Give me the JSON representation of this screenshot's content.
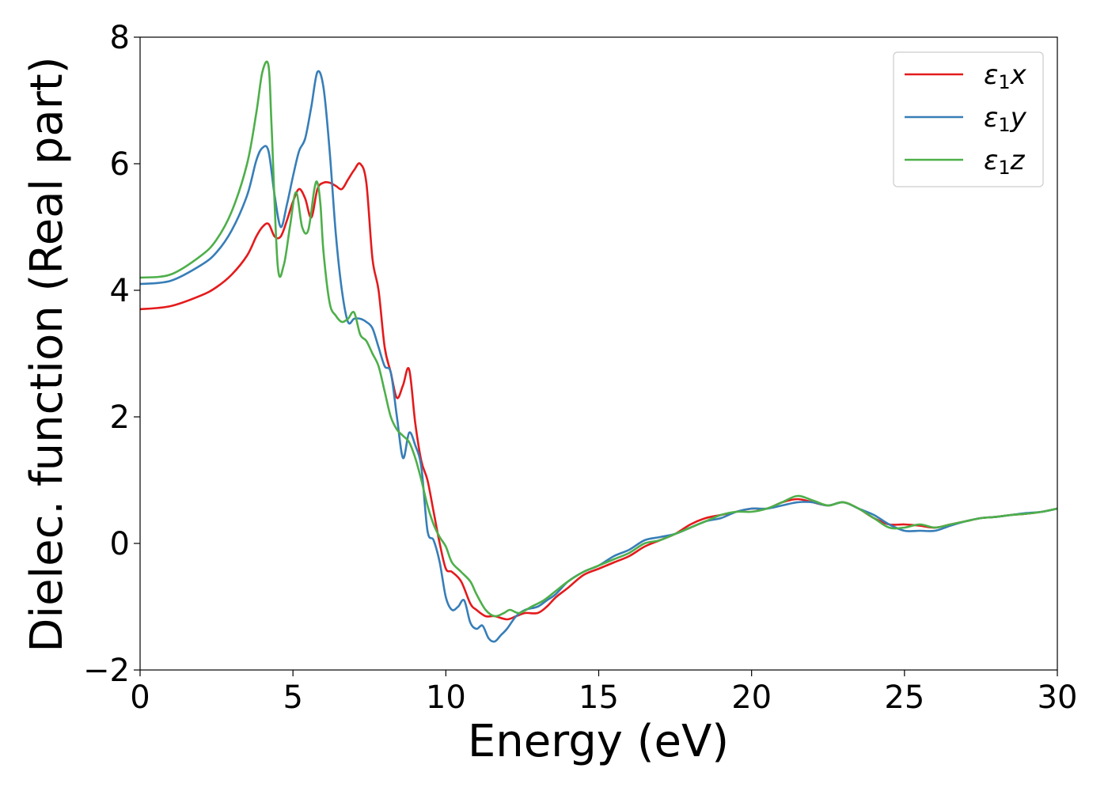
{
  "chart_data": {
    "type": "line",
    "title": "",
    "xlabel": "Energy (eV)",
    "ylabel": "Dielec. function (Real part)",
    "xlim": [
      0,
      30
    ],
    "ylim": [
      -2,
      8
    ],
    "xticks": [
      0,
      5,
      10,
      15,
      20,
      25,
      30
    ],
    "xtick_labels": [
      "0",
      "5",
      "10",
      "15",
      "20",
      "25",
      "30"
    ],
    "yticks": [
      -2,
      0,
      2,
      4,
      6,
      8
    ],
    "ytick_labels": [
      "−2",
      "0",
      "2",
      "4",
      "6",
      "8"
    ],
    "grid": false,
    "legend_position": "top-right",
    "series": [
      {
        "name": "ε₁x",
        "legend_base": "ε",
        "legend_sub": "1",
        "legend_var": "x",
        "color": "#e41a1c",
        "x": [
          0,
          1,
          2,
          2.5,
          3,
          3.5,
          3.8,
          4.0,
          4.2,
          4.4,
          4.6,
          4.8,
          5.0,
          5.2,
          5.4,
          5.6,
          5.8,
          6.0,
          6.2,
          6.4,
          6.6,
          6.8,
          7.0,
          7.2,
          7.4,
          7.6,
          7.8,
          8.0,
          8.2,
          8.4,
          8.6,
          8.8,
          9.0,
          9.2,
          9.4,
          9.6,
          9.8,
          10.0,
          10.2,
          10.5,
          10.8,
          11.0,
          11.3,
          11.6,
          12.0,
          12.3,
          12.6,
          13.0,
          13.3,
          13.6,
          14.0,
          14.5,
          15.0,
          15.5,
          16.0,
          16.5,
          17.0,
          17.5,
          18.0,
          18.5,
          19.0,
          19.5,
          20.0,
          20.5,
          21.0,
          21.5,
          22.0,
          22.5,
          23.0,
          23.5,
          24.0,
          24.5,
          25.0,
          25.5,
          26.0,
          26.5,
          27.0,
          27.5,
          28.0,
          28.5,
          29.0,
          29.5,
          30.0
        ],
        "y": [
          3.7,
          3.75,
          3.92,
          4.05,
          4.25,
          4.55,
          4.85,
          5.0,
          5.05,
          4.85,
          4.85,
          5.1,
          5.4,
          5.6,
          5.45,
          5.15,
          5.6,
          5.7,
          5.7,
          5.65,
          5.6,
          5.75,
          5.9,
          6.0,
          5.7,
          4.5,
          4.0,
          3.1,
          2.7,
          2.3,
          2.5,
          2.75,
          1.9,
          1.3,
          1.0,
          0.5,
          0.0,
          -0.4,
          -0.45,
          -0.6,
          -0.95,
          -1.05,
          -1.15,
          -1.15,
          -1.2,
          -1.15,
          -1.1,
          -1.1,
          -1.0,
          -0.85,
          -0.7,
          -0.5,
          -0.4,
          -0.3,
          -0.2,
          -0.05,
          0.05,
          0.15,
          0.3,
          0.4,
          0.45,
          0.5,
          0.55,
          0.55,
          0.65,
          0.7,
          0.65,
          0.6,
          0.65,
          0.55,
          0.4,
          0.3,
          0.3,
          0.28,
          0.25,
          0.3,
          0.35,
          0.4,
          0.42,
          0.45,
          0.47,
          0.5,
          0.55
        ]
      },
      {
        "name": "ε₁y",
        "legend_base": "ε",
        "legend_sub": "1",
        "legend_var": "y",
        "color": "#377eb8",
        "x": [
          0,
          1,
          2,
          2.5,
          3,
          3.5,
          3.8,
          4.0,
          4.2,
          4.4,
          4.6,
          4.8,
          5.0,
          5.2,
          5.4,
          5.6,
          5.8,
          6.0,
          6.2,
          6.4,
          6.6,
          6.8,
          7.0,
          7.2,
          7.4,
          7.6,
          7.8,
          8.0,
          8.2,
          8.4,
          8.6,
          8.8,
          9.0,
          9.2,
          9.4,
          9.6,
          9.8,
          10.0,
          10.2,
          10.4,
          10.6,
          10.8,
          11.0,
          11.2,
          11.4,
          11.6,
          11.8,
          12.0,
          12.3,
          12.6,
          13.0,
          13.3,
          13.6,
          14.0,
          14.5,
          15.0,
          15.5,
          16.0,
          16.5,
          17.0,
          17.5,
          18.0,
          18.5,
          19.0,
          19.5,
          20.0,
          20.5,
          21.0,
          21.5,
          22.0,
          22.5,
          23.0,
          23.5,
          24.0,
          24.5,
          25.0,
          25.5,
          26.0,
          26.5,
          27.0,
          27.5,
          28.0,
          28.5,
          29.0,
          29.5,
          30.0
        ],
        "y": [
          4.1,
          4.15,
          4.4,
          4.6,
          4.95,
          5.5,
          6.05,
          6.25,
          6.2,
          5.5,
          5.0,
          5.35,
          5.8,
          6.2,
          6.4,
          6.9,
          7.45,
          7.2,
          6.2,
          4.9,
          4.0,
          3.5,
          3.55,
          3.55,
          3.5,
          3.4,
          3.1,
          2.8,
          2.7,
          2.0,
          1.35,
          1.75,
          1.55,
          1.2,
          0.2,
          0.05,
          -0.3,
          -0.85,
          -1.05,
          -1.0,
          -0.9,
          -1.25,
          -1.35,
          -1.3,
          -1.5,
          -1.55,
          -1.45,
          -1.35,
          -1.15,
          -1.05,
          -1.0,
          -0.9,
          -0.8,
          -0.6,
          -0.45,
          -0.35,
          -0.2,
          -0.1,
          0.05,
          0.1,
          0.15,
          0.25,
          0.35,
          0.4,
          0.5,
          0.55,
          0.55,
          0.6,
          0.65,
          0.65,
          0.6,
          0.65,
          0.55,
          0.45,
          0.3,
          0.2,
          0.2,
          0.2,
          0.28,
          0.35,
          0.4,
          0.42,
          0.45,
          0.48,
          0.5,
          0.55
        ]
      },
      {
        "name": "ε₁z",
        "legend_base": "ε",
        "legend_sub": "1",
        "legend_var": "z",
        "color": "#4daf4a",
        "x": [
          0,
          1,
          2,
          2.5,
          3,
          3.5,
          3.8,
          4.0,
          4.2,
          4.3,
          4.5,
          4.7,
          4.9,
          5.1,
          5.3,
          5.5,
          5.7,
          5.8,
          5.9,
          6.0,
          6.2,
          6.4,
          6.6,
          6.8,
          7.0,
          7.2,
          7.4,
          7.6,
          7.8,
          8.0,
          8.2,
          8.4,
          8.6,
          8.8,
          9.0,
          9.2,
          9.4,
          9.6,
          9.8,
          10.0,
          10.2,
          10.5,
          10.8,
          11.0,
          11.3,
          11.6,
          11.9,
          12.1,
          12.4,
          12.8,
          13.2,
          13.6,
          14.0,
          14.5,
          15.0,
          15.5,
          16.0,
          16.5,
          17.0,
          17.5,
          18.0,
          18.5,
          19.0,
          19.5,
          20.0,
          20.5,
          21.0,
          21.5,
          22.0,
          22.5,
          23.0,
          23.5,
          24.0,
          24.5,
          25.0,
          25.5,
          26.0,
          26.5,
          27.0,
          27.5,
          28.0,
          28.5,
          29.0,
          29.5,
          30.0
        ],
        "y": [
          4.2,
          4.25,
          4.55,
          4.8,
          5.25,
          6.0,
          6.8,
          7.45,
          7.55,
          6.6,
          4.4,
          4.4,
          5.0,
          5.55,
          5.0,
          4.95,
          5.6,
          5.7,
          5.35,
          4.6,
          3.8,
          3.6,
          3.5,
          3.55,
          3.65,
          3.3,
          3.2,
          3.0,
          2.8,
          2.4,
          2.0,
          1.8,
          1.7,
          1.6,
          1.35,
          1.0,
          0.6,
          0.3,
          0.1,
          -0.05,
          -0.3,
          -0.45,
          -0.6,
          -0.8,
          -1.05,
          -1.15,
          -1.1,
          -1.05,
          -1.1,
          -1.0,
          -0.9,
          -0.75,
          -0.6,
          -0.45,
          -0.35,
          -0.25,
          -0.15,
          0.0,
          0.05,
          0.15,
          0.25,
          0.35,
          0.45,
          0.5,
          0.5,
          0.55,
          0.65,
          0.75,
          0.68,
          0.6,
          0.65,
          0.55,
          0.4,
          0.25,
          0.25,
          0.3,
          0.25,
          0.3,
          0.35,
          0.4,
          0.42,
          0.45,
          0.47,
          0.5,
          0.55
        ]
      }
    ]
  }
}
